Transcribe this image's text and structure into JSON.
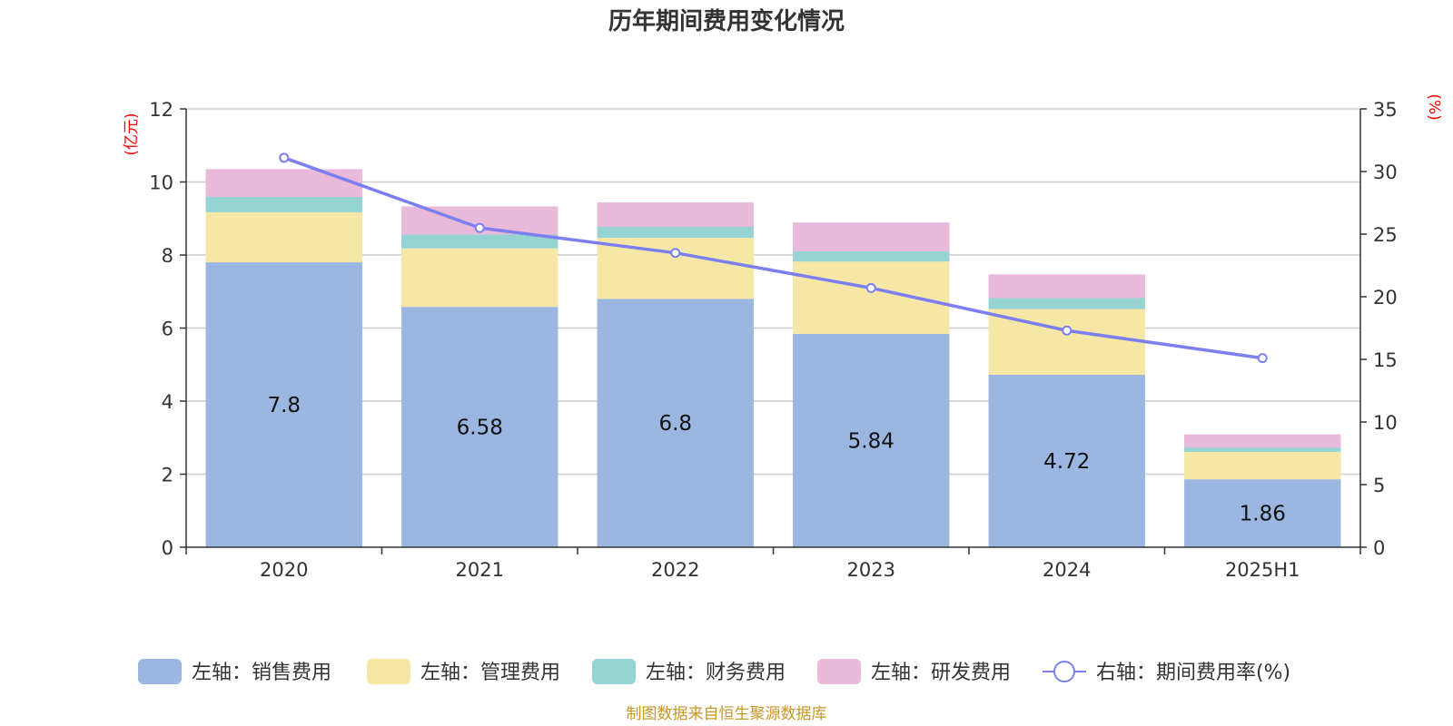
{
  "chart_data": {
    "type": "bar",
    "title": "历年期间费用变化情况",
    "categories": [
      "2020",
      "2021",
      "2022",
      "2023",
      "2024",
      "2025H1"
    ],
    "left_axis": {
      "unit": "(亿元)",
      "ylim": [
        0,
        12
      ],
      "ticks": [
        0,
        2,
        4,
        6,
        8,
        10,
        12
      ]
    },
    "right_axis": {
      "unit": "(%)",
      "ylim": [
        0,
        35
      ],
      "ticks": [
        0,
        5,
        10,
        15,
        20,
        25,
        30,
        35
      ]
    },
    "grid": true,
    "legend_position": "bottom",
    "series": [
      {
        "name": "左轴：销售费用",
        "type": "bar",
        "axis": "left",
        "color": "#9bb7e1",
        "values": [
          7.8,
          6.58,
          6.8,
          5.84,
          4.72,
          1.86
        ],
        "show_labels": true
      },
      {
        "name": "左轴：管理费用",
        "type": "bar",
        "axis": "left",
        "color": "#f7e7a6",
        "values": [
          1.37,
          1.6,
          1.67,
          1.98,
          1.8,
          0.75
        ]
      },
      {
        "name": "左轴：财务费用",
        "type": "bar",
        "axis": "left",
        "color": "#96d3d3",
        "values": [
          0.42,
          0.38,
          0.3,
          0.28,
          0.3,
          0.12
        ]
      },
      {
        "name": "左轴：研发费用",
        "type": "bar",
        "axis": "left",
        "color": "#e8b9d9",
        "values": [
          0.76,
          0.77,
          0.67,
          0.79,
          0.65,
          0.36
        ]
      },
      {
        "name": "右轴：期间费用率(%)",
        "type": "line",
        "axis": "right",
        "color": "#7b7ff0",
        "values": [
          31.1,
          25.5,
          23.5,
          20.7,
          17.3,
          15.1
        ]
      }
    ]
  },
  "footer": {
    "source": "制图数据来自恒生聚源数据库"
  }
}
